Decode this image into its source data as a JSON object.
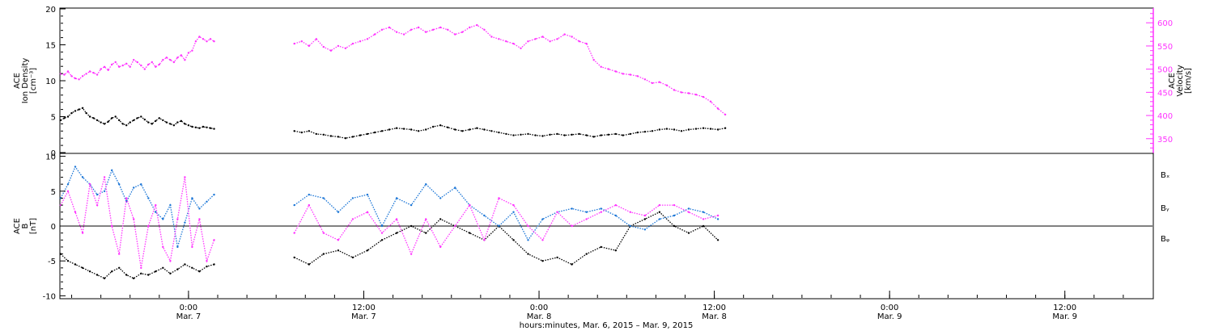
{
  "chart_data": [
    {
      "type": "scatter",
      "ylabel_lines": [
        "ACE",
        "Ion Density",
        "[cm⁻³]"
      ],
      "ylabel_right_lines": [
        "ACE",
        "Velocity",
        "[km/s]"
      ],
      "ylim_left": [
        0,
        20
      ],
      "ylim_right": [
        320,
        630
      ],
      "yticks_left": [
        "0",
        "5",
        "10",
        "15",
        "20"
      ],
      "yticks_right": [
        "350",
        "400",
        "450",
        "500",
        "550",
        "600"
      ],
      "series": [
        {
          "axis": "left",
          "color": "#000000",
          "segments": [
            {
              "x": [
                0,
                0.5,
                1.0,
                1.5,
                2.0,
                2.5,
                3.0,
                3.5,
                4.0,
                4.5,
                5.0,
                5.5,
                6.0,
                6.5,
                7.0,
                7.5,
                8.0,
                8.5,
                9.0,
                9.5,
                10.0,
                10.5,
                11.0,
                11.5,
                12.0,
                12.5,
                13.0,
                13.5,
                14.0,
                14.5,
                15.0,
                15.5,
                16.0,
                16.5,
                17.0,
                17.5,
                18.0,
                18.5,
                19.0,
                19.5,
                20.0,
                20.5,
                21.0
              ],
              "y": [
                4.5,
                4.8,
                5.0,
                5.5,
                5.8,
                6.0,
                6.2,
                5.5,
                5.0,
                4.8,
                4.5,
                4.2,
                4.0,
                4.3,
                4.8,
                5.0,
                4.5,
                4.0,
                3.8,
                4.2,
                4.5,
                4.8,
                5.0,
                4.6,
                4.2,
                4.0,
                4.4,
                4.8,
                4.5,
                4.2,
                4.0,
                3.8,
                4.2,
                4.4,
                4.0,
                3.8,
                3.6,
                3.5,
                3.4,
                3.6,
                3.5,
                3.4,
                3.3
              ]
            },
            {
              "x": [
                32.0,
                33.0,
                34.0,
                35.0,
                36.0,
                37.0,
                38.0,
                39.0,
                40.0,
                41.0,
                42.0,
                43.0,
                44.0,
                45.0,
                46.0,
                47.0,
                48.0,
                49.0,
                50.0,
                51.0,
                52.0,
                53.0,
                54.0,
                55.0,
                56.0,
                57.0,
                58.0,
                59.0,
                60.0,
                61.0,
                62.0,
                63.0,
                64.0,
                65.0,
                66.0,
                67.0,
                68.0,
                69.0,
                70.0,
                71.0,
                72.0,
                73.0,
                74.0,
                75.0,
                76.0,
                77.0,
                78.0,
                79.0,
                80.0,
                81.0,
                82.0,
                83.0,
                84.0,
                85.0,
                86.0,
                87.0,
                88.0,
                89.0,
                90.0,
                91.0
              ],
              "y": [
                3.0,
                2.8,
                3.0,
                2.6,
                2.5,
                2.3,
                2.2,
                2.0,
                2.2,
                2.4,
                2.6,
                2.8,
                3.0,
                3.2,
                3.4,
                3.3,
                3.2,
                3.0,
                3.2,
                3.6,
                3.8,
                3.5,
                3.2,
                3.0,
                3.2,
                3.4,
                3.2,
                3.0,
                2.8,
                2.6,
                2.4,
                2.5,
                2.6,
                2.4,
                2.3,
                2.5,
                2.6,
                2.4,
                2.5,
                2.6,
                2.4,
                2.2,
                2.4,
                2.5,
                2.6,
                2.4,
                2.6,
                2.8,
                2.9,
                3.0,
                3.2,
                3.3,
                3.2,
                3.0,
                3.2,
                3.3,
                3.4,
                3.3,
                3.2,
                3.4
              ]
            }
          ]
        },
        {
          "axis": "right",
          "color": "#ff33ff",
          "segments": [
            {
              "x": [
                0,
                0.5,
                1.0,
                1.5,
                2.0,
                2.5,
                3.0,
                3.5,
                4.0,
                4.5,
                5.0,
                5.5,
                6.0,
                6.5,
                7.0,
                7.5,
                8.0,
                8.5,
                9.0,
                9.5,
                10.0,
                10.5,
                11.0,
                11.5,
                12.0,
                12.5,
                13.0,
                13.5,
                14.0,
                14.5,
                15.0,
                15.5,
                16.0,
                16.5,
                17.0,
                17.5,
                18.0,
                18.5,
                19.0,
                19.5,
                20.0,
                20.5,
                21.0
              ],
              "y": [
                490,
                488,
                495,
                485,
                480,
                478,
                485,
                490,
                495,
                492,
                488,
                500,
                505,
                498,
                510,
                515,
                505,
                508,
                512,
                505,
                520,
                515,
                508,
                500,
                510,
                515,
                505,
                510,
                520,
                525,
                520,
                515,
                525,
                530,
                520,
                535,
                540,
                560,
                570,
                565,
                560,
                565,
                560
              ]
            },
            {
              "x": [
                32.0,
                33.0,
                34.0,
                35.0,
                36.0,
                37.0,
                38.0,
                39.0,
                40.0,
                41.0,
                42.0,
                43.0,
                44.0,
                45.0,
                46.0,
                47.0,
                48.0,
                49.0,
                50.0,
                51.0,
                52.0,
                53.0,
                54.0,
                55.0,
                56.0,
                57.0,
                58.0,
                59.0,
                60.0,
                61.0,
                62.0,
                63.0,
                64.0,
                65.0,
                66.0,
                67.0,
                68.0,
                69.0,
                70.0,
                71.0,
                72.0,
                73.0,
                74.0,
                75.0,
                76.0,
                77.0,
                78.0,
                79.0,
                80.0,
                81.0,
                82.0,
                83.0,
                84.0,
                85.0,
                86.0,
                87.0,
                88.0,
                89.0,
                90.0,
                91.0
              ],
              "y": [
                555,
                560,
                550,
                565,
                548,
                540,
                550,
                545,
                555,
                560,
                565,
                575,
                585,
                590,
                580,
                575,
                585,
                590,
                580,
                585,
                590,
                585,
                575,
                580,
                590,
                595,
                585,
                570,
                565,
                560,
                555,
                545,
                560,
                565,
                570,
                560,
                565,
                575,
                570,
                560,
                555,
                520,
                505,
                500,
                495,
                490,
                488,
                485,
                478,
                470,
                472,
                465,
                455,
                450,
                448,
                445,
                440,
                430,
                415,
                402
              ]
            }
          ]
        }
      ]
    },
    {
      "type": "scatter",
      "ylabel_lines": [
        "ACE",
        "B",
        "[nT]"
      ],
      "ylim": [
        -10.3,
        10.3
      ],
      "yticks": [
        "-10",
        "-5",
        "0",
        "5",
        "10"
      ],
      "zero_line": true,
      "legend": [
        "Bₓ",
        "Bᵧ",
        "Bᵩ"
      ],
      "xlabel": "hours:minutes, Mar. 6, 2015 – Mar. 9, 2015",
      "x_ticks": [
        {
          "x": 17.5,
          "line1": "0:00",
          "line2": "Mar. 7"
        },
        {
          "x": 41.5,
          "line1": "12:00",
          "line2": "Mar. 7"
        },
        {
          "x": 65.5,
          "line1": "0:00",
          "line2": "Mar. 8"
        },
        {
          "x": 89.5,
          "line1": "12:00",
          "line2": "Mar. 8"
        },
        {
          "x": 113.5,
          "line1": "0:00",
          "line2": "Mar. 9"
        },
        {
          "x": 137.5,
          "line1": "12:00",
          "line2": "Mar. 9"
        }
      ],
      "series": [
        {
          "name": "Bₓ",
          "color": "#000000",
          "segments": [
            {
              "x": [
                0,
                1,
                2,
                3,
                4,
                5,
                6,
                7,
                8,
                9,
                10,
                11,
                12,
                13,
                14,
                15,
                16,
                17,
                18,
                19,
                20,
                21
              ],
              "y": [
                -4,
                -5,
                -5.5,
                -6,
                -6.5,
                -7,
                -7.5,
                -6.5,
                -6,
                -7,
                -7.5,
                -6.8,
                -7,
                -6.5,
                -6,
                -6.8,
                -6.2,
                -5.5,
                -6,
                -6.5,
                -5.8,
                -5.5
              ]
            },
            {
              "x": [
                32,
                34,
                36,
                38,
                40,
                42,
                44,
                46,
                48,
                50,
                52,
                54,
                56,
                58,
                60,
                62,
                64,
                66,
                68,
                70,
                72,
                74,
                76,
                78,
                80,
                82,
                84,
                86,
                88,
                90
              ],
              "y": [
                -4.5,
                -5.5,
                -4,
                -3.5,
                -4.5,
                -3.5,
                -2,
                -1,
                0,
                -1,
                1,
                0,
                -1,
                -2,
                0,
                -2,
                -4,
                -5,
                -4.5,
                -5.5,
                -4,
                -3,
                -3.5,
                0,
                1,
                2,
                0,
                -1,
                0,
                -2
              ]
            }
          ]
        },
        {
          "name": "Bᵧ",
          "color": "#1a75d6",
          "segments": [
            {
              "x": [
                0,
                1,
                2,
                3,
                4,
                5,
                6,
                7,
                8,
                9,
                10,
                11,
                12,
                13,
                14,
                15,
                16,
                17,
                18,
                19,
                20,
                21
              ],
              "y": [
                4,
                6,
                8.5,
                7,
                6,
                4.5,
                5,
                8,
                6,
                3.5,
                5.5,
                6,
                4,
                2,
                1,
                3,
                -3,
                0.5,
                4,
                2.5,
                3.5,
                4.5
              ]
            },
            {
              "x": [
                32,
                34,
                36,
                38,
                40,
                42,
                44,
                46,
                48,
                50,
                52,
                54,
                56,
                58,
                60,
                62,
                64,
                66,
                68,
                70,
                72,
                74,
                76,
                78,
                80,
                82,
                84,
                86,
                88,
                90
              ],
              "y": [
                3,
                4.5,
                4,
                2,
                4,
                4.5,
                0,
                4,
                3,
                6,
                4,
                5.5,
                3,
                1.5,
                0,
                2,
                -2,
                1,
                2,
                2.5,
                2,
                2.5,
                1.5,
                0,
                -0.5,
                1,
                1.5,
                2.5,
                2,
                1
              ]
            }
          ]
        },
        {
          "name": "Bᵩ",
          "color": "#ff33ff",
          "segments": [
            {
              "x": [
                0,
                1,
                2,
                3,
                4,
                5,
                6,
                7,
                8,
                9,
                10,
                11,
                12,
                13,
                14,
                15,
                16,
                17,
                18,
                19,
                20,
                21
              ],
              "y": [
                3,
                5,
                2,
                -1,
                6,
                3,
                7,
                0,
                -4,
                4,
                1,
                -6,
                0,
                3,
                -3,
                -5,
                1,
                7,
                -3,
                1,
                -5,
                -2
              ]
            },
            {
              "x": [
                32,
                34,
                36,
                38,
                40,
                42,
                44,
                46,
                48,
                50,
                52,
                54,
                56,
                58,
                60,
                62,
                64,
                66,
                68,
                70,
                72,
                74,
                76,
                78,
                80,
                82,
                84,
                86,
                88,
                90
              ],
              "y": [
                -1,
                3,
                -1,
                -2,
                1,
                2,
                -1,
                1,
                -4,
                1,
                -3,
                0,
                3,
                -2,
                4,
                3,
                0,
                -2,
                2,
                0,
                1,
                2,
                3,
                2,
                1.5,
                3,
                3,
                2,
                1,
                1.5
              ]
            }
          ]
        }
      ]
    }
  ]
}
